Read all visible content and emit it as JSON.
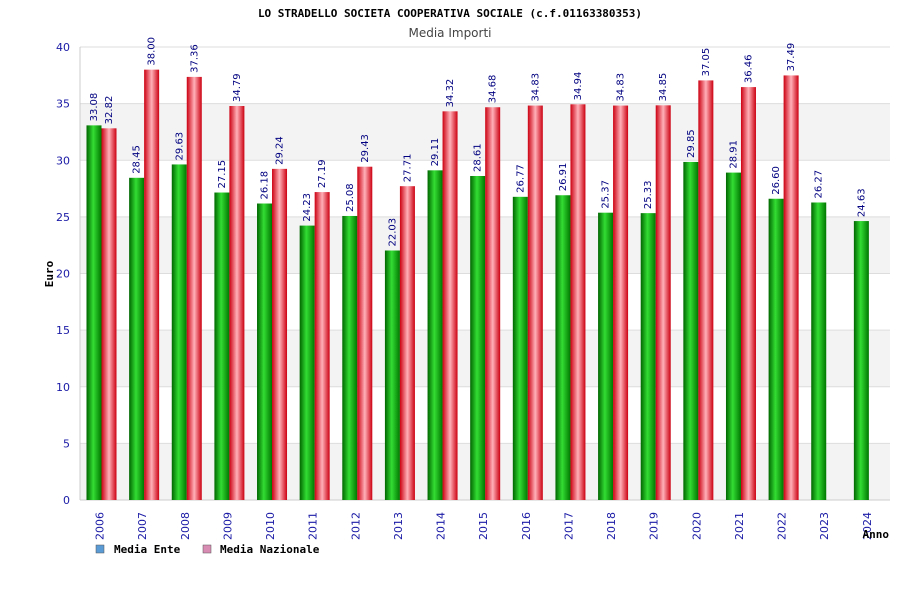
{
  "chart_data": {
    "type": "bar",
    "title": "LO STRADELLO SOCIETA COOPERATIVA SOCIALE (c.f.01163380353)",
    "subtitle": "Media Importi",
    "xlabel": "Anno",
    "ylabel": "Euro",
    "ylim": [
      0,
      40
    ],
    "yticks": [
      0,
      5,
      10,
      15,
      20,
      25,
      30,
      35,
      40
    ],
    "grid": true,
    "legend_position": "bottom-left",
    "categories": [
      "2006",
      "2007",
      "2008",
      "2009",
      "2010",
      "2011",
      "2012",
      "2013",
      "2014",
      "2015",
      "2016",
      "2017",
      "2018",
      "2019",
      "2020",
      "2021",
      "2022",
      "2023",
      "2024"
    ],
    "series": [
      {
        "name": "Media Ente",
        "color": "#00aa00",
        "legend_color": "#5b9bd5",
        "values": [
          33.08,
          28.45,
          29.63,
          27.15,
          26.18,
          24.23,
          25.08,
          22.03,
          29.11,
          28.61,
          26.77,
          26.91,
          25.37,
          25.33,
          29.85,
          28.91,
          26.6,
          26.27,
          24.63
        ],
        "labels": [
          "33.08",
          "28.45",
          "29.63",
          "27.15",
          "26.18",
          "24.23",
          "25.08",
          "22.03",
          "29.11",
          "28.61",
          "26.77",
          "26.91",
          "25.37",
          "25.33",
          "29.85",
          "28.91",
          "26.60",
          "26.27",
          "24.63"
        ]
      },
      {
        "name": "Media Nazionale",
        "color": "#dd2233",
        "legend_color": "#d98cb3",
        "values": [
          32.82,
          38.0,
          37.36,
          34.79,
          29.24,
          27.19,
          29.43,
          27.71,
          34.32,
          34.68,
          34.83,
          34.94,
          34.83,
          34.85,
          37.05,
          36.46,
          37.49,
          null,
          null
        ],
        "labels": [
          "32.82",
          "38.00",
          "37.36",
          "34.79",
          "29.24",
          "27.19",
          "29.43",
          "27.71",
          "34.32",
          "34.68",
          "34.83",
          "34.94",
          "34.83",
          "34.85",
          "37.05",
          "36.46",
          "37.49",
          null,
          null
        ]
      }
    ]
  }
}
